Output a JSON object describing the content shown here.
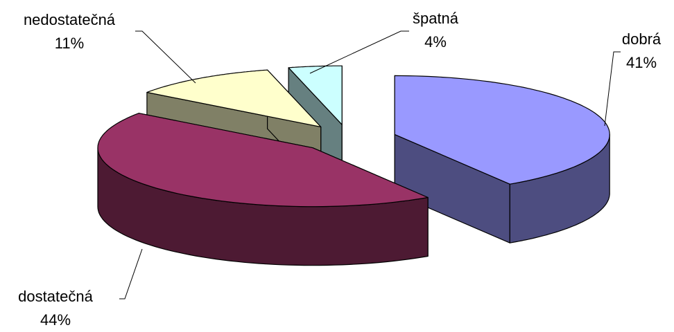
{
  "chart_data": {
    "type": "pie",
    "categories": [
      "dobrá",
      "dostatečná",
      "nedostatečná",
      "špatná"
    ],
    "values": [
      41,
      44,
      11,
      4
    ],
    "value_labels": [
      "41%",
      "44%",
      "11%",
      "4%"
    ],
    "colors": [
      "#9999ff",
      "#993366",
      "#ffffcc",
      "#ccffff"
    ]
  }
}
